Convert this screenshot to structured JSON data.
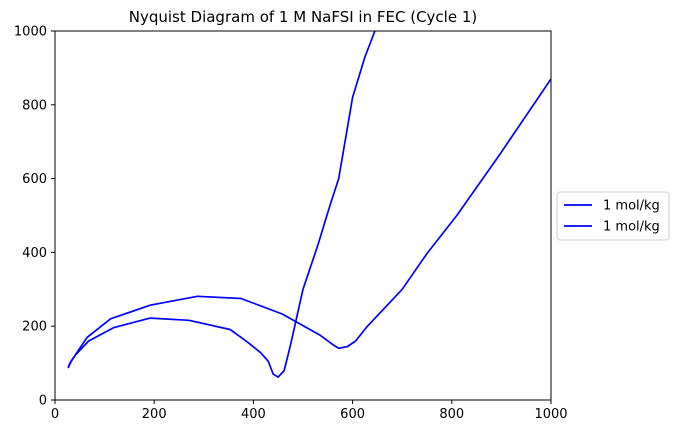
{
  "chart_data": {
    "type": "line",
    "title": "Nyquist Diagram of 1 M NaFSI in FEC (Cycle 1)",
    "xlabel": "",
    "ylabel": "",
    "xlim": [
      0,
      1000
    ],
    "ylim": [
      0,
      1000
    ],
    "x_ticks": [
      0,
      200,
      400,
      600,
      800,
      1000
    ],
    "y_ticks": [
      0,
      200,
      400,
      600,
      800,
      1000
    ],
    "x_tick_labels": [
      "0",
      "200",
      "400",
      "600",
      "800",
      "1000"
    ],
    "y_tick_labels": [
      "0",
      "200",
      "400",
      "600",
      "800",
      "1000"
    ],
    "grid": false,
    "legend_position": "outside right",
    "colors": {
      "series": "#0000ff",
      "axes": "#000000",
      "background": "#ffffff"
    },
    "series": [
      {
        "name": "1 mol/kg",
        "color": "#0000ff",
        "x": [
          27,
          35,
          45,
          65,
          112,
          192,
          287,
          375,
          458,
          535,
          560,
          572,
          590,
          606,
          618,
          627,
          630,
          700,
          750,
          810,
          895,
          1000
        ],
        "y": [
          90,
          110,
          130,
          170,
          220,
          257,
          281,
          275,
          233,
          175,
          150,
          140,
          145,
          160,
          180,
          195,
          200,
          300,
          397,
          500,
          662,
          870
        ]
      },
      {
        "name": "1 mol/kg",
        "color": "#0000ff",
        "x": [
          27,
          30,
          40,
          68,
          118,
          192,
          270,
          353,
          375,
          390,
          415,
          430,
          437,
          440,
          450,
          462,
          475,
          500,
          530,
          555,
          572,
          600,
          625,
          645
        ],
        "y": [
          88,
          100,
          120,
          160,
          196,
          222,
          216,
          191,
          170,
          155,
          128,
          105,
          80,
          70,
          62,
          80,
          150,
          300,
          420,
          530,
          600,
          820,
          930,
          1000
        ]
      }
    ]
  }
}
